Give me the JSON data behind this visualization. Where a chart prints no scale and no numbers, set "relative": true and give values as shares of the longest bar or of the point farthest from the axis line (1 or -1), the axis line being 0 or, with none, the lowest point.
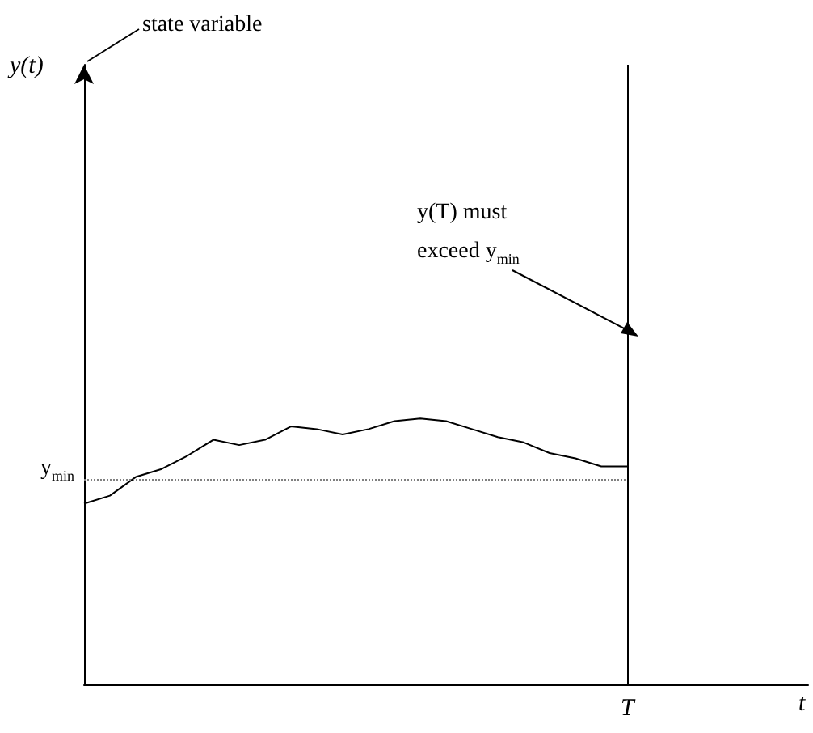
{
  "chart_data": {
    "type": "line",
    "relative": true,
    "xlabel": "t",
    "categories": [
      null,
      null,
      null,
      null,
      null,
      null,
      null,
      null,
      null,
      null,
      null,
      null,
      null,
      null,
      null,
      null,
      null,
      null,
      null,
      null,
      null,
      null,
      null,
      null,
      null,
      null,
      null,
      null,
      null
    ],
    "series": [
      {
        "color": "#000000",
        "values": [
          0.68,
          0.71,
          0.78,
          0.81,
          0.86,
          0.92,
          0.9,
          0.92,
          0.97,
          0.96,
          0.94,
          0.96,
          0.99,
          1,
          0.99,
          0.96,
          0.93,
          0.91,
          0.87,
          0.85,
          0.82,
          0.82,
          null,
          null,
          null,
          null,
          null,
          null,
          null
        ]
      }
    ],
    "ref_lines": [
      {
        "axis": "y",
        "value": 0.77,
        "label": "y$_{min}$",
        "line_style": "dotted",
        "color": "#808080"
      },
      {
        "axis": "x",
        "value": null,
        "label": "T",
        "line_style": "solid",
        "color": "#000000"
      }
    ],
    "annotations": [
      "state variable",
      "y(t)",
      "y(T) must exceed y$_{min}$"
    ],
    "marker": "none",
    "grid": false
  }
}
